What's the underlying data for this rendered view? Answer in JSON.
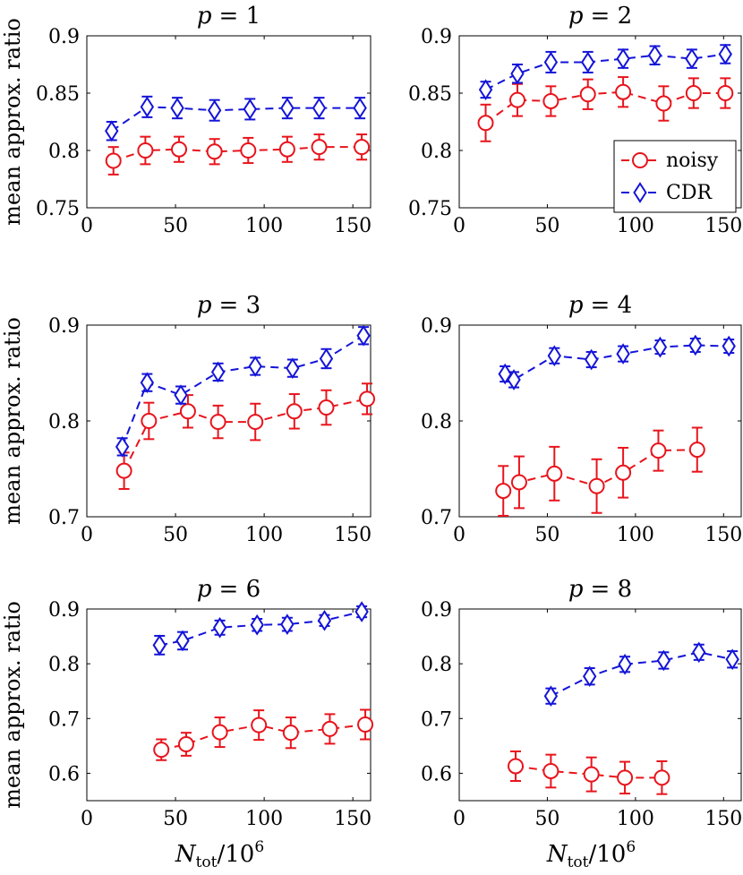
{
  "chart_data": [
    {
      "type": "line",
      "title_var": "p",
      "title_eq": "= 1",
      "ylabel": "mean approx. ratio",
      "xlim": [
        0,
        160
      ],
      "ylim": [
        0.75,
        0.9
      ],
      "xticks": [
        0,
        50,
        100,
        150
      ],
      "xtick_labels": [
        "0",
        "50",
        "100",
        "150"
      ],
      "yticks": [
        0.75,
        0.8,
        0.85,
        0.9
      ],
      "ytick_labels": [
        "0.75",
        "0.8",
        "0.85",
        "0.9"
      ],
      "series": [
        {
          "name": "noisy",
          "color": "#e8141c",
          "marker": "circle",
          "x": [
            15,
            33,
            52,
            72,
            91,
            113,
            131,
            155
          ],
          "y": [
            0.791,
            0.8,
            0.801,
            0.799,
            0.8,
            0.801,
            0.803,
            0.803
          ],
          "err": [
            0.012,
            0.012,
            0.011,
            0.011,
            0.011,
            0.011,
            0.011,
            0.011
          ]
        },
        {
          "name": "CDR",
          "color": "#1414d8",
          "marker": "diamond",
          "x": [
            14,
            34,
            51,
            72,
            92,
            113,
            131,
            154
          ],
          "y": [
            0.817,
            0.838,
            0.837,
            0.835,
            0.836,
            0.837,
            0.837,
            0.837
          ],
          "err": [
            0.008,
            0.009,
            0.009,
            0.009,
            0.009,
            0.009,
            0.009,
            0.009
          ]
        }
      ]
    },
    {
      "type": "line",
      "title_var": "p",
      "title_eq": "= 2",
      "ylabel": "",
      "xlim": [
        0,
        160
      ],
      "ylim": [
        0.75,
        0.9
      ],
      "xticks": [
        0,
        50,
        100,
        150
      ],
      "xtick_labels": [
        "0",
        "50",
        "100",
        "150"
      ],
      "yticks": [
        0.75,
        0.8,
        0.85,
        0.9
      ],
      "ytick_labels": [
        "0.75",
        "0.8",
        "0.85",
        "0.9"
      ],
      "legend": {
        "position": "right-middle",
        "entries": [
          "noisy",
          "CDR"
        ]
      },
      "series": [
        {
          "name": "noisy",
          "color": "#e8141c",
          "marker": "circle",
          "x": [
            15,
            33,
            52,
            73,
            93,
            116,
            133,
            151
          ],
          "y": [
            0.824,
            0.844,
            0.843,
            0.849,
            0.851,
            0.841,
            0.85,
            0.85
          ],
          "err": [
            0.016,
            0.014,
            0.013,
            0.013,
            0.013,
            0.015,
            0.013,
            0.013
          ]
        },
        {
          "name": "CDR",
          "color": "#1414d8",
          "marker": "diamond",
          "x": [
            15,
            33,
            52,
            73,
            93,
            111,
            132,
            151
          ],
          "y": [
            0.853,
            0.867,
            0.877,
            0.877,
            0.88,
            0.883,
            0.88,
            0.884
          ],
          "err": [
            0.007,
            0.008,
            0.009,
            0.009,
            0.008,
            0.008,
            0.008,
            0.008
          ]
        }
      ]
    },
    {
      "type": "line",
      "title_var": "p",
      "title_eq": "= 3",
      "ylabel": "mean approx. ratio",
      "xlim": [
        0,
        160
      ],
      "ylim": [
        0.7,
        0.9
      ],
      "xticks": [
        0,
        50,
        100,
        150
      ],
      "xtick_labels": [
        "0",
        "50",
        "100",
        "150"
      ],
      "yticks": [
        0.7,
        0.8,
        0.9
      ],
      "ytick_labels": [
        "0.7",
        "0.8",
        "0.9"
      ],
      "series": [
        {
          "name": "noisy",
          "color": "#e8141c",
          "marker": "circle",
          "x": [
            21,
            35,
            57,
            74,
            95,
            117,
            135,
            158
          ],
          "y": [
            0.748,
            0.8,
            0.81,
            0.799,
            0.799,
            0.81,
            0.814,
            0.823
          ],
          "err": [
            0.019,
            0.019,
            0.017,
            0.017,
            0.019,
            0.018,
            0.018,
            0.016
          ]
        },
        {
          "name": "CDR",
          "color": "#1414d8",
          "marker": "diamond",
          "x": [
            20,
            34,
            53,
            74,
            95,
            116,
            135,
            156
          ],
          "y": [
            0.773,
            0.84,
            0.827,
            0.851,
            0.857,
            0.855,
            0.865,
            0.889
          ],
          "err": [
            0.009,
            0.009,
            0.009,
            0.009,
            0.009,
            0.009,
            0.01,
            0.009
          ]
        }
      ]
    },
    {
      "type": "line",
      "title_var": "p",
      "title_eq": "= 4",
      "ylabel": "",
      "xlim": [
        0,
        160
      ],
      "ylim": [
        0.7,
        0.9
      ],
      "xticks": [
        0,
        50,
        100,
        150
      ],
      "xtick_labels": [
        "0",
        "50",
        "100",
        "150"
      ],
      "yticks": [
        0.7,
        0.8,
        0.9
      ],
      "ytick_labels": [
        "0.7",
        "0.8",
        "0.9"
      ],
      "series": [
        {
          "name": "noisy",
          "color": "#e8141c",
          "marker": "circle",
          "x": [
            25,
            34,
            54,
            78,
            93,
            113,
            135
          ],
          "y": [
            0.727,
            0.736,
            0.745,
            0.732,
            0.746,
            0.769,
            0.77
          ],
          "err": [
            0.026,
            0.027,
            0.028,
            0.028,
            0.026,
            0.021,
            0.023
          ]
        },
        {
          "name": "CDR",
          "color": "#1414d8",
          "marker": "diamond",
          "x": [
            26,
            31,
            54,
            75,
            93,
            114,
            134,
            153
          ],
          "y": [
            0.849,
            0.843,
            0.868,
            0.864,
            0.87,
            0.877,
            0.879,
            0.878
          ],
          "err": [
            0.008,
            0.008,
            0.008,
            0.008,
            0.008,
            0.007,
            0.007,
            0.007
          ]
        }
      ]
    },
    {
      "type": "line",
      "title_var": "p",
      "title_eq": "= 6",
      "ylabel": "mean approx. ratio",
      "xlim": [
        0,
        160
      ],
      "ylim": [
        0.55,
        0.9
      ],
      "xticks": [
        0,
        50,
        100,
        150
      ],
      "xtick_labels": [
        "0",
        "50",
        "100",
        "150"
      ],
      "yticks": [
        0.6,
        0.7,
        0.8,
        0.9
      ],
      "ytick_labels": [
        "0.6",
        "0.7",
        "0.8",
        "0.9"
      ],
      "series": [
        {
          "name": "noisy",
          "color": "#e8141c",
          "marker": "circle",
          "x": [
            42,
            56,
            75,
            97,
            115,
            137,
            157
          ],
          "y": [
            0.643,
            0.653,
            0.675,
            0.688,
            0.674,
            0.681,
            0.689
          ],
          "err": [
            0.019,
            0.021,
            0.027,
            0.027,
            0.028,
            0.027,
            0.027
          ]
        },
        {
          "name": "CDR",
          "color": "#1414d8",
          "marker": "diamond",
          "x": [
            41,
            54,
            75,
            96,
            113,
            134,
            155
          ],
          "y": [
            0.834,
            0.842,
            0.866,
            0.871,
            0.872,
            0.879,
            0.895
          ],
          "err": [
            0.017,
            0.016,
            0.013,
            0.011,
            0.012,
            0.01,
            0.01
          ]
        }
      ]
    },
    {
      "type": "line",
      "title_var": "p",
      "title_eq": "= 8",
      "ylabel": "",
      "xlim": [
        0,
        160
      ],
      "ylim": [
        0.55,
        0.9
      ],
      "xticks": [
        0,
        50,
        100,
        150
      ],
      "xtick_labels": [
        "0",
        "50",
        "100",
        "150"
      ],
      "yticks": [
        0.6,
        0.7,
        0.8,
        0.9
      ],
      "ytick_labels": [
        "0.6",
        "0.7",
        "0.8",
        "0.9"
      ],
      "series": [
        {
          "name": "noisy",
          "color": "#e8141c",
          "marker": "circle",
          "x": [
            32,
            52,
            75,
            94,
            115
          ],
          "y": [
            0.613,
            0.604,
            0.598,
            0.592,
            0.592
          ],
          "err": [
            0.027,
            0.03,
            0.031,
            0.029,
            0.03
          ]
        },
        {
          "name": "CDR",
          "color": "#1414d8",
          "marker": "diamond",
          "x": [
            52,
            74,
            94,
            116,
            136,
            155
          ],
          "y": [
            0.741,
            0.777,
            0.799,
            0.806,
            0.821,
            0.808
          ],
          "err": [
            0.014,
            0.015,
            0.014,
            0.015,
            0.014,
            0.015
          ]
        }
      ]
    }
  ],
  "xlabel": {
    "main": "N",
    "sub": "tot",
    "rest": "/10",
    "sup": "6"
  }
}
